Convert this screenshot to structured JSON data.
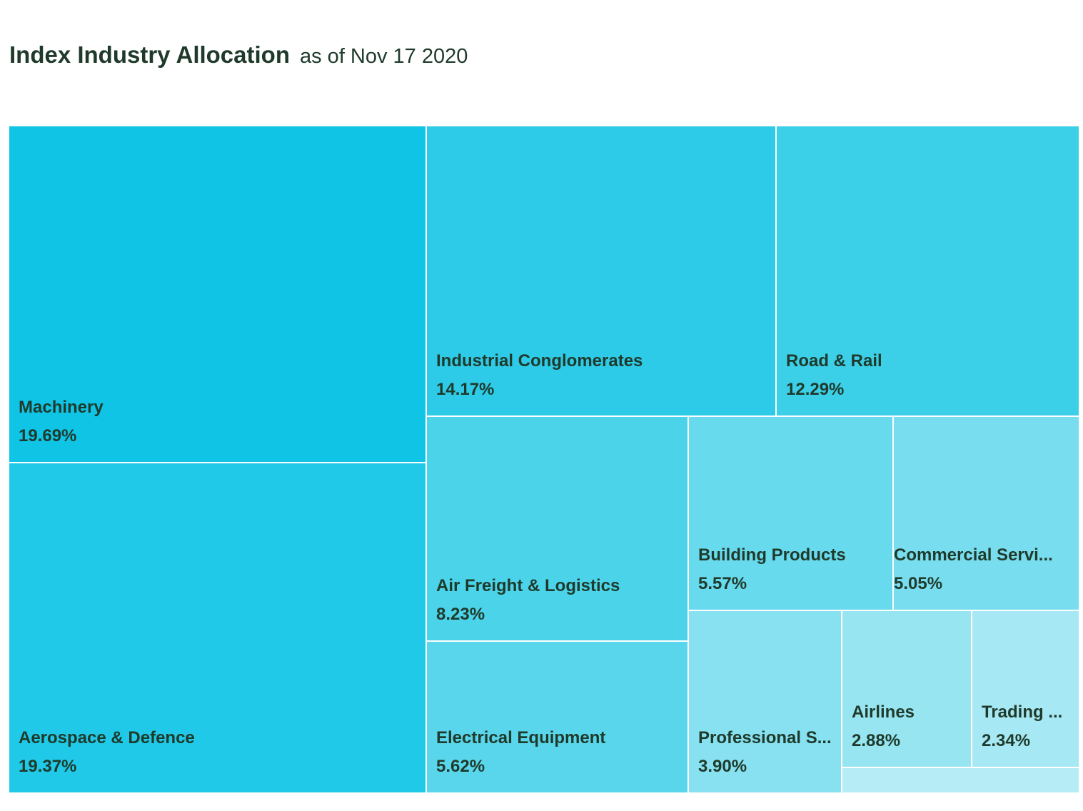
{
  "header": {
    "title": "Index Industry Allocation",
    "subtitle": "as of Nov 17 2020"
  },
  "chart_data": {
    "type": "treemap",
    "title": "Index Industry Allocation",
    "subtitle": "as of Nov 17 2020",
    "items": [
      {
        "label": "Machinery",
        "value": 19.69,
        "display": "19.69%",
        "color": "#10c4e6"
      },
      {
        "label": "Aerospace & Defence",
        "value": 19.37,
        "display": "19.37%",
        "color": "#1fc9e7"
      },
      {
        "label": "Industrial Conglomerates",
        "value": 14.17,
        "display": "14.17%",
        "color": "#2ecbe8"
      },
      {
        "label": "Road & Rail",
        "value": 12.29,
        "display": "12.29%",
        "color": "#3ccfe8"
      },
      {
        "label": "Air Freight & Logistics",
        "value": 8.23,
        "display": "8.23%",
        "color": "#4bd3ea"
      },
      {
        "label": "Electrical Equipment",
        "value": 5.62,
        "display": "5.62%",
        "color": "#59d6eb"
      },
      {
        "label": "Building Products",
        "value": 5.57,
        "display": "5.57%",
        "color": "#68daed"
      },
      {
        "label": "Commercial Servi...",
        "value": 5.05,
        "display": "5.05%",
        "color": "#78ddee"
      },
      {
        "label": "Professional S...",
        "value": 3.9,
        "display": "3.90%",
        "color": "#87e1f0"
      },
      {
        "label": "Airlines",
        "value": 2.88,
        "display": "2.88%",
        "color": "#97e5f1"
      },
      {
        "label": "Trading ...",
        "value": 2.34,
        "display": "2.34%",
        "color": "#a6e8f3"
      },
      {
        "label": "",
        "value": 0.89,
        "display": "",
        "color": "#b6ecf5"
      }
    ]
  }
}
